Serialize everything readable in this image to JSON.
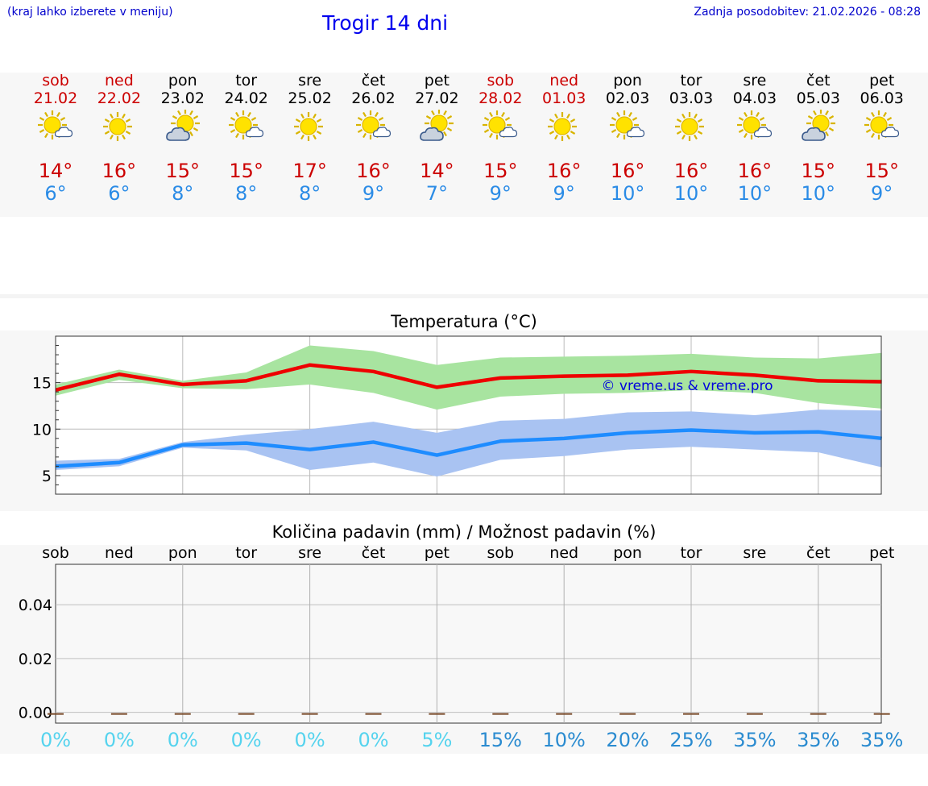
{
  "header": {
    "hint": "(kraj lahko izberete v meniju)",
    "title": "Trogir 14 dni",
    "updated": "Zadnja posodobitev: 21.02.2026 - 08:28"
  },
  "colors": {
    "weekend": "#cc0000",
    "weekday": "#000000",
    "max_temp": "#cc0000",
    "min_temp": "#2a8be6",
    "max_line": "#ee0000",
    "min_line": "#1e8cff",
    "max_band": "#a8e4a0",
    "min_band": "#a9c3f2"
  },
  "days": [
    {
      "name": "sob",
      "date": "21.02",
      "weekend": true,
      "icon": "sun-cloud-icon",
      "tmax": "14°",
      "tmin": "6°"
    },
    {
      "name": "ned",
      "date": "22.02",
      "weekend": true,
      "icon": "sun-icon",
      "tmax": "16°",
      "tmin": "6°"
    },
    {
      "name": "pon",
      "date": "23.02",
      "weekend": false,
      "icon": "cloud-sun-icon",
      "tmax": "15°",
      "tmin": "8°"
    },
    {
      "name": "tor",
      "date": "24.02",
      "weekend": false,
      "icon": "sun-cloud-icon",
      "tmax": "15°",
      "tmin": "8°"
    },
    {
      "name": "sre",
      "date": "25.02",
      "weekend": false,
      "icon": "sun-icon",
      "tmax": "17°",
      "tmin": "8°"
    },
    {
      "name": "čet",
      "date": "26.02",
      "weekend": false,
      "icon": "sun-cloud-icon",
      "tmax": "16°",
      "tmin": "9°"
    },
    {
      "name": "pet",
      "date": "27.02",
      "weekend": false,
      "icon": "cloud-sun-icon",
      "tmax": "14°",
      "tmin": "7°"
    },
    {
      "name": "sob",
      "date": "28.02",
      "weekend": true,
      "icon": "sun-cloud-icon",
      "tmax": "15°",
      "tmin": "9°"
    },
    {
      "name": "ned",
      "date": "01.03",
      "weekend": true,
      "icon": "sun-icon",
      "tmax": "16°",
      "tmin": "9°"
    },
    {
      "name": "pon",
      "date": "02.03",
      "weekend": false,
      "icon": "sun-cloud-icon",
      "tmax": "16°",
      "tmin": "10°"
    },
    {
      "name": "tor",
      "date": "03.03",
      "weekend": false,
      "icon": "sun-icon",
      "tmax": "16°",
      "tmin": "10°"
    },
    {
      "name": "sre",
      "date": "04.03",
      "weekend": false,
      "icon": "sun-cloud-icon",
      "tmax": "16°",
      "tmin": "10°"
    },
    {
      "name": "čet",
      "date": "05.03",
      "weekend": false,
      "icon": "cloud-sun-icon",
      "tmax": "15°",
      "tmin": "10°"
    },
    {
      "name": "pet",
      "date": "06.03",
      "weekend": false,
      "icon": "sun-cloud-icon",
      "tmax": "15°",
      "tmin": "9°"
    }
  ],
  "chart_data": [
    {
      "type": "line",
      "title": "Temperatura (°C)",
      "watermark": "© vreme.us & vreme.pro",
      "x": [
        0,
        1,
        2,
        3,
        4,
        5,
        6,
        7,
        8,
        9,
        10,
        11,
        12,
        13
      ],
      "ylim": [
        3,
        20
      ],
      "yticks": [
        5,
        10,
        15
      ],
      "grid": true,
      "series": [
        {
          "name": "max",
          "values": [
            14.2,
            15.9,
            14.8,
            15.2,
            16.9,
            16.2,
            14.5,
            15.5,
            15.7,
            15.8,
            16.2,
            15.8,
            15.2,
            15.1
          ],
          "band_low": [
            13.6,
            15.3,
            14.4,
            14.3,
            14.8,
            13.9,
            12.1,
            13.5,
            13.8,
            13.9,
            14.2,
            13.9,
            12.8,
            12.2
          ],
          "band_high": [
            14.8,
            16.4,
            15.2,
            16.1,
            19.0,
            18.4,
            16.9,
            17.7,
            17.8,
            17.9,
            18.1,
            17.7,
            17.6,
            18.2
          ]
        },
        {
          "name": "min",
          "values": [
            6.0,
            6.4,
            8.3,
            8.5,
            7.8,
            8.6,
            7.2,
            8.7,
            9.0,
            9.6,
            9.9,
            9.6,
            9.7,
            9.0
          ],
          "band_low": [
            5.6,
            6.0,
            8.0,
            7.7,
            5.6,
            6.4,
            4.9,
            6.7,
            7.1,
            7.8,
            8.1,
            7.8,
            7.5,
            5.9
          ],
          "band_high": [
            6.6,
            6.8,
            8.6,
            9.4,
            10.0,
            10.8,
            9.6,
            10.9,
            11.1,
            11.8,
            11.9,
            11.5,
            12.1,
            12.0
          ]
        }
      ]
    },
    {
      "type": "bar",
      "title": "Količina padavin (mm) / Možnost padavin (%)",
      "categories": [
        "sob",
        "ned",
        "pon",
        "tor",
        "sre",
        "čet",
        "pet",
        "sob",
        "ned",
        "pon",
        "tor",
        "sre",
        "čet",
        "pet"
      ],
      "values": [
        0,
        0,
        0,
        0,
        0,
        0,
        0,
        0,
        0,
        0,
        0,
        0,
        0,
        0
      ],
      "ylim": [
        -0.004,
        0.055
      ],
      "yticks": [
        "0.00",
        "0.02",
        "0.04"
      ],
      "grid": true,
      "chance_labels": [
        "0%",
        "0%",
        "0%",
        "0%",
        "0%",
        "0%",
        "5%",
        "15%",
        "10%",
        "20%",
        "25%",
        "35%",
        "35%",
        "35%"
      ],
      "chance_values": [
        0,
        0,
        0,
        0,
        0,
        0,
        5,
        15,
        10,
        20,
        25,
        35,
        35,
        35
      ]
    }
  ]
}
